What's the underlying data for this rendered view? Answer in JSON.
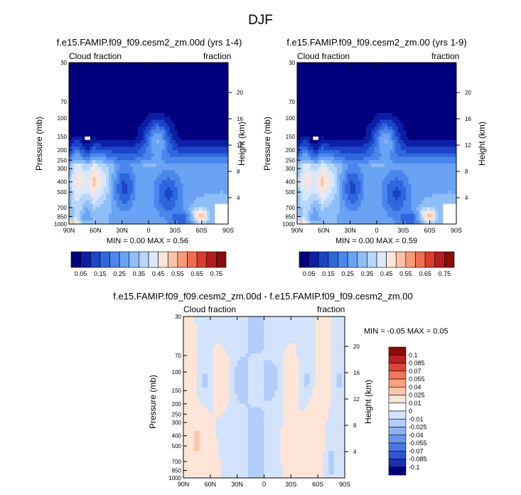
{
  "title": "DJF",
  "colors": {
    "seq": [
      "#00007f",
      "#0b1fa6",
      "#1b44c6",
      "#2f67dd",
      "#4a86ec",
      "#6aa3f4",
      "#8ebef8",
      "#b6d6fb",
      "#d9e8fd",
      "#fde4d6",
      "#fbc3a6",
      "#f79a78",
      "#ef6e52",
      "#dc3c2e",
      "#b71b1b",
      "#8b0a0a"
    ],
    "div": [
      "#00007f",
      "#1b2fb0",
      "#2f55d2",
      "#4a78e6",
      "#6b96ee",
      "#8db2f4",
      "#b1cdf8",
      "#d2e3fb",
      "#ffffff",
      "#fde4d6",
      "#fbc6aa",
      "#f7a17f",
      "#ef7657",
      "#dc4533",
      "#bb1f1f",
      "#8b0a0a"
    ]
  },
  "chart_data": [
    {
      "type": "heatmap",
      "title": "f.e15.FAMIP.f09_f09.cesm2_zm.00d (yrs 1-4)",
      "left_label": "Cloud fraction",
      "right_label": "fraction",
      "ylabel": "Pressure (mb)",
      "ylabel_right": "Height (km)",
      "x_ticks": [
        "90N",
        "60N",
        "30N",
        "0",
        "30S",
        "60S",
        "90S"
      ],
      "x_range": [
        90,
        -90
      ],
      "y_ticks": [
        30,
        70,
        100,
        150,
        200,
        250,
        300,
        400,
        500,
        700,
        850,
        1000
      ],
      "y_range": [
        30,
        1000
      ],
      "y_scale": "log",
      "height_ticks": [
        20,
        16,
        12,
        8,
        4
      ],
      "min": 0.0,
      "max": 0.56,
      "min_label": "MIN =  0.00  MAX =  0.56",
      "colorbar_labels": [
        "0.05",
        "0.15",
        "0.25",
        "0.35",
        "0.45",
        "0.55",
        "0.65",
        "0.75"
      ],
      "field": "cloud"
    },
    {
      "type": "heatmap",
      "title": "f.e15.FAMIP.f09_f09.cesm2_zm.00 (yrs 1-9)",
      "left_label": "Cloud fraction",
      "right_label": "fraction",
      "ylabel": "Pressure (mb)",
      "ylabel_right": "Height (km)",
      "x_ticks": [
        "90N",
        "60N",
        "30N",
        "0",
        "30S",
        "60S",
        "90S"
      ],
      "x_range": [
        90,
        -90
      ],
      "y_ticks": [
        30,
        70,
        100,
        150,
        200,
        250,
        300,
        400,
        500,
        700,
        850,
        1000
      ],
      "y_range": [
        30,
        1000
      ],
      "y_scale": "log",
      "height_ticks": [
        20,
        16,
        12,
        8,
        4
      ],
      "min": 0.0,
      "max": 0.59,
      "min_label": "MIN =  0.00  MAX =  0.59",
      "colorbar_labels": [
        "0.05",
        "0.15",
        "0.25",
        "0.35",
        "0.45",
        "0.55",
        "0.65",
        "0.75"
      ],
      "field": "cloud"
    },
    {
      "type": "heatmap",
      "title": "f.e15.FAMIP.f09_f09.cesm2_zm.00d - f.e15.FAMIP.f09_f09.cesm2_zm.00",
      "left_label": "Cloud fraction",
      "right_label": "fraction",
      "ylabel": "Pressure (mb)",
      "ylabel_right": "Height (km)",
      "x_ticks": [
        "90N",
        "60N",
        "30N",
        "0",
        "30S",
        "60S",
        "90S"
      ],
      "x_range": [
        90,
        -90
      ],
      "y_ticks": [
        30,
        70,
        100,
        150,
        200,
        250,
        300,
        400,
        500,
        700,
        850,
        1000
      ],
      "y_range": [
        30,
        1000
      ],
      "y_scale": "log",
      "height_ticks": [
        20,
        16,
        12,
        8,
        4
      ],
      "min": -0.05,
      "max": 0.05,
      "min_label": "MIN =  -0.05  MAX =  0.05",
      "colorbar_labels": [
        "0.1",
        "0.085",
        "0.07",
        "0.055",
        "0.04",
        "0.025",
        "0.01",
        "0",
        "-0.01",
        "-0.025",
        "-0.04",
        "-0.055",
        "-0.07",
        "-0.085",
        "-0.1"
      ],
      "field": "diff"
    }
  ]
}
